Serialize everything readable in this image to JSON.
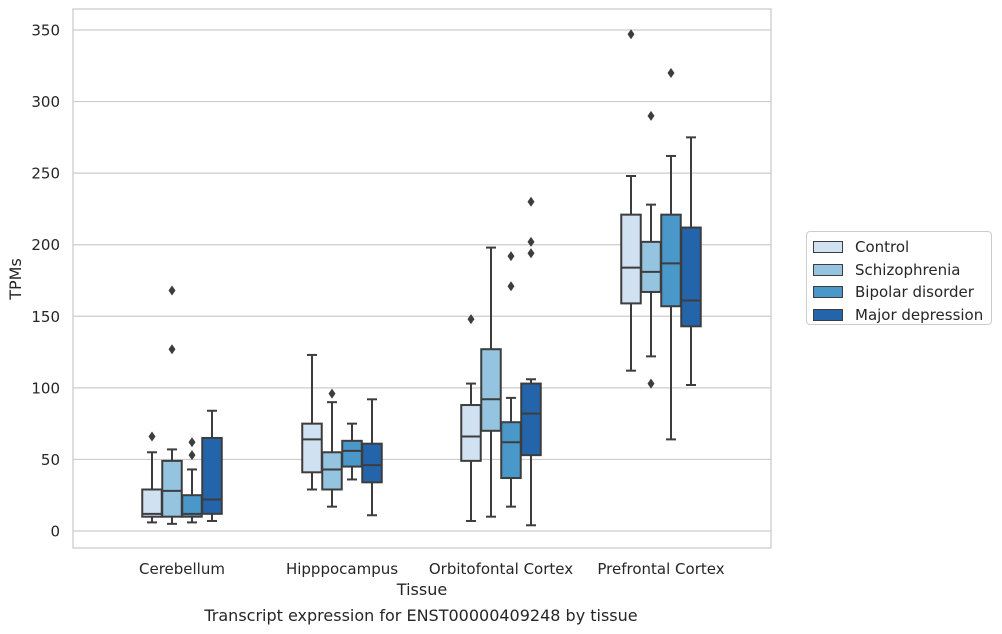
{
  "chart_data": {
    "type": "box",
    "caption": "Transcript expression for ENST00000409248 by tissue",
    "xlabel": "Tissue",
    "ylabel": "TPMs",
    "ylim": [
      -12,
      365
    ],
    "yticks": [
      0,
      50,
      100,
      150,
      200,
      250,
      300,
      350
    ],
    "grid": true,
    "legend_position": "right",
    "categories": [
      "Cerebellum",
      "Hipppocampus",
      "Orbitofontal Cortex",
      "Prefrontal Cortex"
    ],
    "series": [
      {
        "name": "Control",
        "color": "#d0e1f2",
        "boxes": [
          {
            "whislo": 6,
            "q1": 10,
            "med": 12,
            "q3": 29,
            "whishi": 55,
            "fliers": [
              66
            ]
          },
          {
            "whislo": 29,
            "q1": 41,
            "med": 64,
            "q3": 75,
            "whishi": 123,
            "fliers": []
          },
          {
            "whislo": 7,
            "q1": 49,
            "med": 66,
            "q3": 88,
            "whishi": 103,
            "fliers": [
              148
            ]
          },
          {
            "whislo": 112,
            "q1": 159,
            "med": 184,
            "q3": 221,
            "whishi": 248,
            "fliers": [
              347
            ]
          }
        ]
      },
      {
        "name": "Schizophrenia",
        "color": "#94c4df",
        "boxes": [
          {
            "whislo": 5,
            "q1": 10,
            "med": 28,
            "q3": 49,
            "whishi": 57,
            "fliers": [
              127,
              168
            ]
          },
          {
            "whislo": 17,
            "q1": 29,
            "med": 43,
            "q3": 55,
            "whishi": 90,
            "fliers": [
              96
            ]
          },
          {
            "whislo": 10,
            "q1": 70,
            "med": 92,
            "q3": 127,
            "whishi": 198,
            "fliers": []
          },
          {
            "whislo": 122,
            "q1": 167,
            "med": 181,
            "q3": 202,
            "whishi": 228,
            "fliers": [
              103,
              290
            ]
          }
        ]
      },
      {
        "name": "Bipolar disorder",
        "color": "#4a98c9",
        "boxes": [
          {
            "whislo": 6,
            "q1": 10,
            "med": 12,
            "q3": 25,
            "whishi": 43,
            "fliers": [
              53,
              62
            ]
          },
          {
            "whislo": 36,
            "q1": 45,
            "med": 56,
            "q3": 63,
            "whishi": 75,
            "fliers": []
          },
          {
            "whislo": 17,
            "q1": 37,
            "med": 62,
            "q3": 76,
            "whishi": 93,
            "fliers": [
              171,
              192
            ]
          },
          {
            "whislo": 64,
            "q1": 157,
            "med": 187,
            "q3": 221,
            "whishi": 262,
            "fliers": [
              320
            ]
          }
        ]
      },
      {
        "name": "Major depression",
        "color": "#2464ab",
        "boxes": [
          {
            "whislo": 7,
            "q1": 12,
            "med": 22,
            "q3": 65,
            "whishi": 84,
            "fliers": []
          },
          {
            "whislo": 11,
            "q1": 34,
            "med": 46,
            "q3": 61,
            "whishi": 92,
            "fliers": []
          },
          {
            "whislo": 4,
            "q1": 53,
            "med": 82,
            "q3": 103,
            "whishi": 106,
            "fliers": [
              194,
              202,
              230
            ]
          },
          {
            "whislo": 102,
            "q1": 143,
            "med": 161,
            "q3": 212,
            "whishi": 275,
            "fliers": []
          }
        ]
      }
    ]
  }
}
